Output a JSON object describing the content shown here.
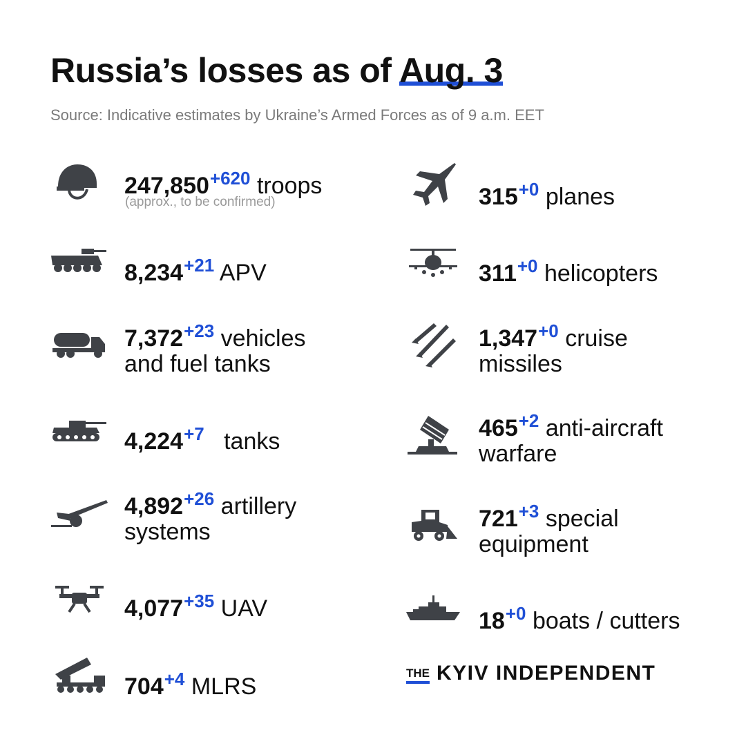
{
  "header": {
    "title_prefix": "Russia’s losses as of",
    "title_date": "Aug. 3",
    "source": "Source: Indicative estimates by Ukraine’s Armed Forces as of 9 a.m. EET"
  },
  "items": {
    "troops": {
      "value": "247,850",
      "delta": "+620",
      "label": "troops",
      "note": "(approx., to be confirmed)",
      "icon": "helmet-icon"
    },
    "apv": {
      "value": "8,234",
      "delta": "+21",
      "label": "APV",
      "icon": "apv-icon"
    },
    "vehicles": {
      "value": "7,372",
      "delta": "+23",
      "label": "vehicles",
      "label2": "and fuel tanks",
      "icon": "fuel-truck-icon"
    },
    "tanks": {
      "value": "4,224",
      "delta": "+7",
      "label": "tanks",
      "icon": "tank-icon"
    },
    "artillery": {
      "value": "4,892",
      "delta": "+26",
      "label": "artillery",
      "label2": "systems",
      "icon": "artillery-icon"
    },
    "uav": {
      "value": "4,077",
      "delta": "+35",
      "label": "UAV",
      "icon": "drone-icon"
    },
    "mlrs": {
      "value": "704",
      "delta": "+4",
      "label": "MLRS",
      "icon": "mlrs-icon"
    },
    "planes": {
      "value": "315",
      "delta": "+0",
      "label": "planes",
      "icon": "jet-icon"
    },
    "helicopters": {
      "value": "311",
      "delta": "+0",
      "label": "helicopters",
      "icon": "helicopter-icon"
    },
    "cruise": {
      "value": "1,347",
      "delta": "+0",
      "label": "cruise",
      "label2": "missiles",
      "icon": "missiles-icon"
    },
    "antiair": {
      "value": "465",
      "delta": "+2",
      "label": "anti-aircraft",
      "label2": "warfare",
      "icon": "anti-aircraft-icon"
    },
    "special": {
      "value": "721",
      "delta": "+3",
      "label": "special",
      "label2": "equipment",
      "icon": "loader-icon"
    },
    "boats": {
      "value": "18",
      "delta": "+0",
      "label": "boats / cutters",
      "icon": "warship-icon"
    }
  },
  "logo": {
    "the": "THE",
    "name": "KYIV INDEPENDENT"
  },
  "colors": {
    "accent": "#1f4fd6",
    "text": "#111111",
    "muted": "#7a7a7a",
    "icon": "#3f4247"
  }
}
